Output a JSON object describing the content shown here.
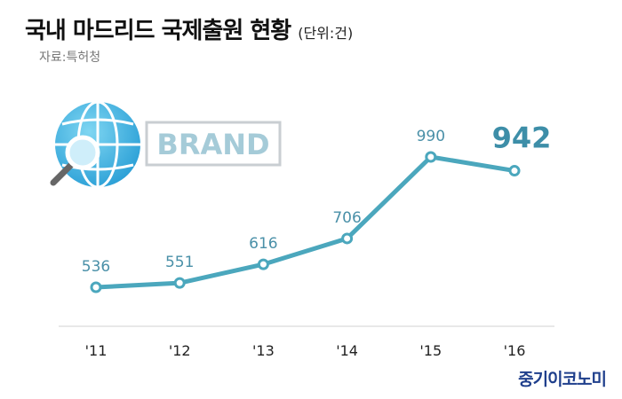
{
  "title": "국내 마드리드 국제출원 현황",
  "unit": "(단위:건)",
  "source": "자료:특허청",
  "brand_label": "BRAND",
  "watermark": "중기이코노미",
  "colors": {
    "line": "#4ba7bd",
    "label": "#4a90a8",
    "highlight": "#3d8ea8"
  },
  "icons": [
    "globe-icon",
    "magnifier-icon"
  ],
  "chart_data": {
    "type": "line",
    "title": "국내 마드리드 국제출원 현황",
    "unit": "건",
    "categories": [
      "'11",
      "'12",
      "'13",
      "'14",
      "'15",
      "'16"
    ],
    "values": [
      536,
      551,
      616,
      706,
      990,
      942
    ],
    "highlight_index": 5,
    "grid": false,
    "legend": "none"
  }
}
